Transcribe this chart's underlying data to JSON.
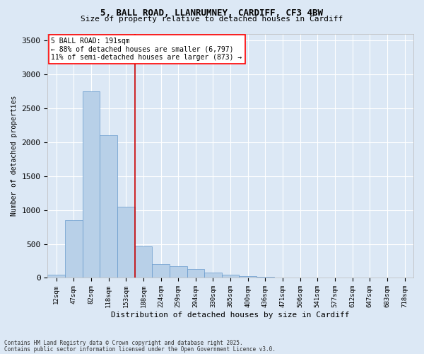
{
  "title_line1": "5, BALL ROAD, LLANRUMNEY, CARDIFF, CF3 4BW",
  "title_line2": "Size of property relative to detached houses in Cardiff",
  "xlabel": "Distribution of detached houses by size in Cardiff",
  "ylabel": "Number of detached properties",
  "bar_labels": [
    "12sqm",
    "47sqm",
    "82sqm",
    "118sqm",
    "153sqm",
    "188sqm",
    "224sqm",
    "259sqm",
    "294sqm",
    "330sqm",
    "365sqm",
    "400sqm",
    "436sqm",
    "471sqm",
    "506sqm",
    "541sqm",
    "577sqm",
    "612sqm",
    "647sqm",
    "683sqm",
    "718sqm"
  ],
  "bar_values": [
    50,
    850,
    2750,
    2100,
    1050,
    460,
    200,
    175,
    125,
    75,
    50,
    30,
    15,
    5,
    2,
    1,
    0,
    0,
    0,
    0,
    0
  ],
  "bar_color": "#b8d0e8",
  "bar_edge_color": "#6699cc",
  "bar_edge_width": 0.5,
  "bg_color": "#dce8f5",
  "grid_color": "#ffffff",
  "annotation_text": "5 BALL ROAD: 191sqm\n← 88% of detached houses are smaller (6,797)\n11% of semi-detached houses are larger (873) →",
  "vline_bin_index": 5,
  "vline_color": "#cc0000",
  "ylim": [
    0,
    3600
  ],
  "yticks": [
    0,
    500,
    1000,
    1500,
    2000,
    2500,
    3000,
    3500
  ],
  "footnote1": "Contains HM Land Registry data © Crown copyright and database right 2025.",
  "footnote2": "Contains public sector information licensed under the Open Government Licence v3.0."
}
